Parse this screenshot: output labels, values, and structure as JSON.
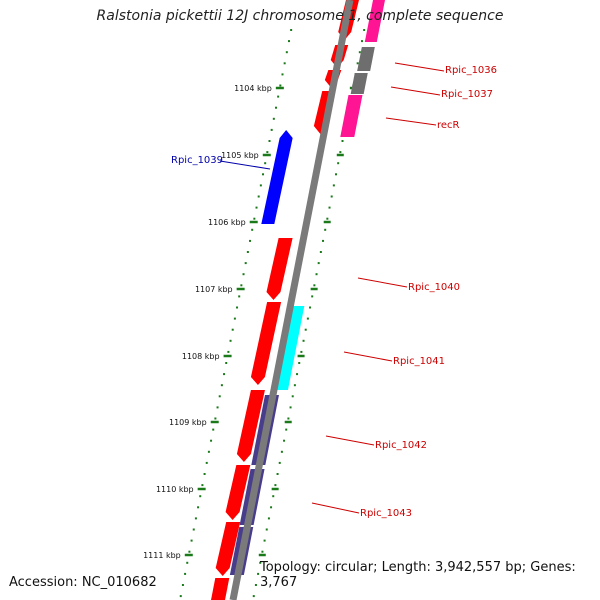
{
  "title": "Ralstonia pickettii 12J chromosome 1, complete sequence",
  "footer": {
    "accession": "Accession: NC_010682",
    "topology": "Topology: circular; Length: 3,942,557 bp; Genes: 3,767"
  },
  "colors": {
    "backbone": "#7a7a7a",
    "tick": "#1a7a1a",
    "gene_red": "#ff0000",
    "gene_blue": "#0000ff",
    "gene_cyan": "#00ffff",
    "gene_purple": "#483d8b",
    "gene_pink": "#ff1493",
    "gene_gray": "#6e6e6e",
    "label_red": "#cc0000",
    "label_blue": "#0000aa"
  },
  "tick_labels": [
    "1104 kbp",
    "1105 kbp",
    "1106 kbp",
    "1107 kbp",
    "1108 kbp",
    "1109 kbp",
    "1110 kbp",
    "1111 kbp"
  ],
  "gene_labels": [
    {
      "text": "Rpic_1036",
      "color": "label_red"
    },
    {
      "text": "Rpic_1037",
      "color": "label_red"
    },
    {
      "text": "recR",
      "color": "label_red"
    },
    {
      "text": "Rpic_1039",
      "color": "label_blue"
    },
    {
      "text": "Rpic_1040",
      "color": "label_red"
    },
    {
      "text": "Rpic_1041",
      "color": "label_red"
    },
    {
      "text": "Rpic_1042",
      "color": "label_red"
    },
    {
      "text": "Rpic_1043",
      "color": "label_red"
    }
  ]
}
